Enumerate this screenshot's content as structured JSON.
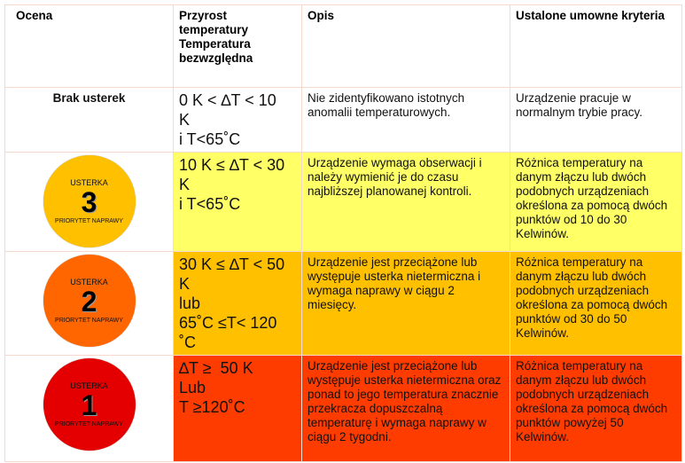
{
  "headers": [
    "Ocena",
    "Przyrost temperatury Temperatura bezwzględna",
    "Opis",
    "Ustalone umowne kryteria"
  ],
  "colors": {
    "yellow": "#ffff66",
    "orange": "#ffc000",
    "red": "#ff3c00",
    "badge3": "#ffc000",
    "badge2": "#ff6600",
    "badge1": "#e40000"
  },
  "rows": [
    {
      "rating": "Brak usterek",
      "range": "0 K < ∆T < 10\nK\ni T<65˚C",
      "desc": "Nie zidentyfikowano istotnych anomalii temperaturowych.",
      "criteria": "Urządzenie pracuje w normalnym trybie pracy."
    },
    {
      "badge": {
        "top": "USTERKA",
        "num": "3",
        "bottom": "PRIORYTET NAPRAWY"
      },
      "range": "10 K ≤ ∆T < 30\nK\ni T<65˚C",
      "desc": "Urządzenie wymaga obserwacji i należy wymienić je do czasu najbliższej planowanej kontroli.",
      "criteria": "Różnica temperatury na danym złączu lub dwóch podobnych urządzeniach określona za pomocą dwóch punktów  od 10 do 30 Kelwinów."
    },
    {
      "badge": {
        "top": "USTERKA",
        "num": "2",
        "bottom": "PRIORYTET NAPRAWY"
      },
      "range": "30 K ≤ ∆T < 50\nK\nlub\n65˚C ≤T< 120\n˚C",
      "desc": "Urządzenie jest przeciążone lub występuje usterka nietermiczna i wymaga naprawy w ciągu 2 miesięcy.",
      "criteria": "Różnica temperatury na danym złączu lub dwóch podobnych urządzeniach określona za pomocą dwóch punktów od 30 do 50 Kelwinów."
    },
    {
      "badge": {
        "top": "USTERKA",
        "num": "1",
        "bottom": "PRIORYTET NAPRAWY"
      },
      "range": "∆T ≥  50 K\nLub\nT ≥120˚C",
      "desc": "Urządzenie jest przeciążone lub występuje usterka nietermiczna oraz ponad to jego temperatura znacznie przekracza dopuszczalną temperaturę i wymaga naprawy w ciągu 2 tygodni.",
      "criteria": "Różnica temperatury na danym złączu lub dwóch podobnych urządzeniach określona za pomocą dwóch punktów powyżej 50 Kelwinów."
    }
  ]
}
